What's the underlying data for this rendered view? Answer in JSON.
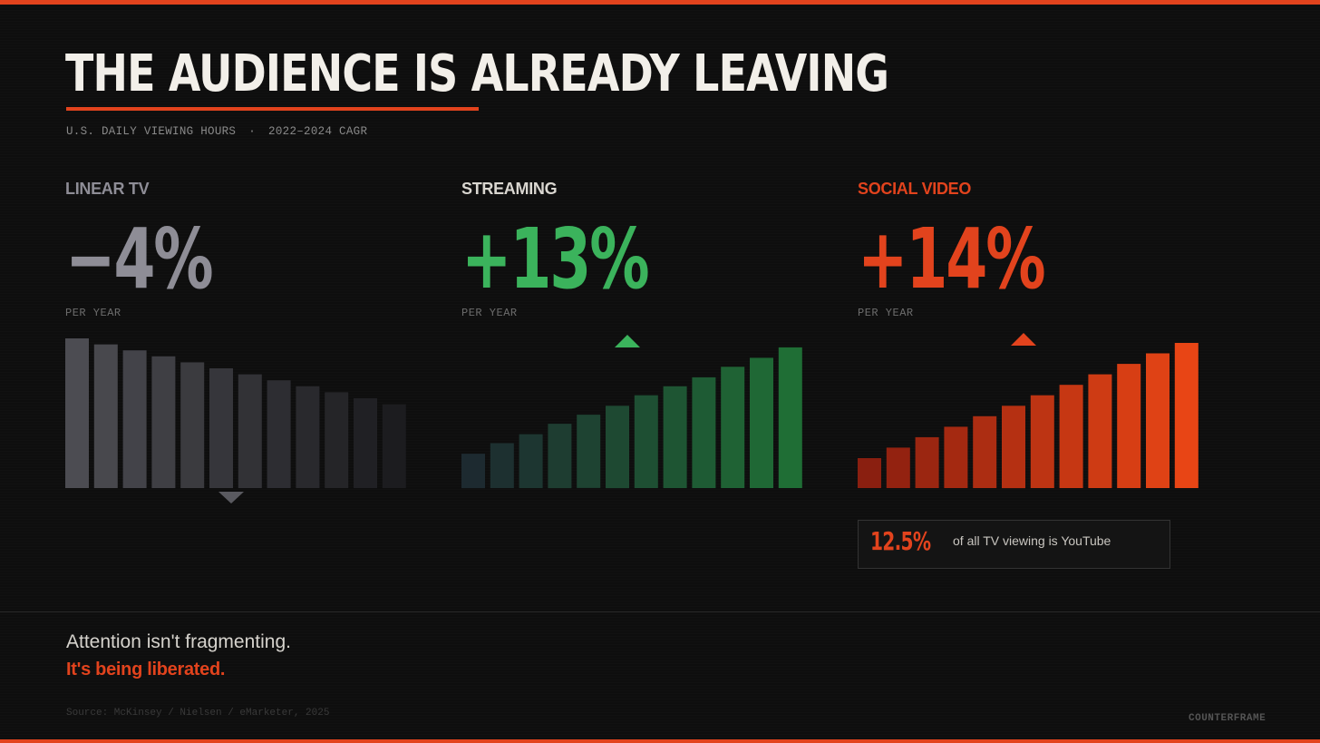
{
  "title": "THE AUDIENCE IS ALREADY LEAVING",
  "subtitle": {
    "left": "U.S. DAILY VIEWING HOURS",
    "separator": "·",
    "right": "2022–2024 CAGR"
  },
  "colors": {
    "accent": "#e2431d",
    "linear": "#8e8d96",
    "streaming": "#3bb35c",
    "social": "#e2431d"
  },
  "chart_data": [
    {
      "type": "bar",
      "label": "LINEAR TV",
      "value_text": "−4%",
      "unit_text": "PER YEAR",
      "trend": "down",
      "values": [
        100,
        96,
        92,
        88,
        84,
        80,
        76,
        72,
        68,
        64,
        60,
        56
      ],
      "ylim": [
        0,
        100
      ]
    },
    {
      "type": "bar",
      "label": "STREAMING",
      "value_text": "+13%",
      "unit_text": "PER YEAR",
      "trend": "up",
      "values": [
        23,
        30,
        36,
        43,
        49,
        55,
        62,
        68,
        74,
        81,
        87,
        94
      ],
      "ylim": [
        0,
        100
      ]
    },
    {
      "type": "bar",
      "label": "SOCIAL VIDEO",
      "value_text": "+14%",
      "unit_text": "PER YEAR",
      "trend": "up",
      "values": [
        20,
        27,
        34,
        41,
        48,
        55,
        62,
        69,
        76,
        83,
        90,
        97
      ],
      "ylim": [
        0,
        100
      ]
    }
  ],
  "callout": {
    "value": "12.5%",
    "text": "of all TV viewing is YouTube"
  },
  "tagline": {
    "line1": "Attention isn't fragmenting.",
    "line2": "It's being liberated."
  },
  "source": "Source: McKinsey / Nielsen / eMarketer, 2025",
  "brand": "COUNTERFRAME"
}
